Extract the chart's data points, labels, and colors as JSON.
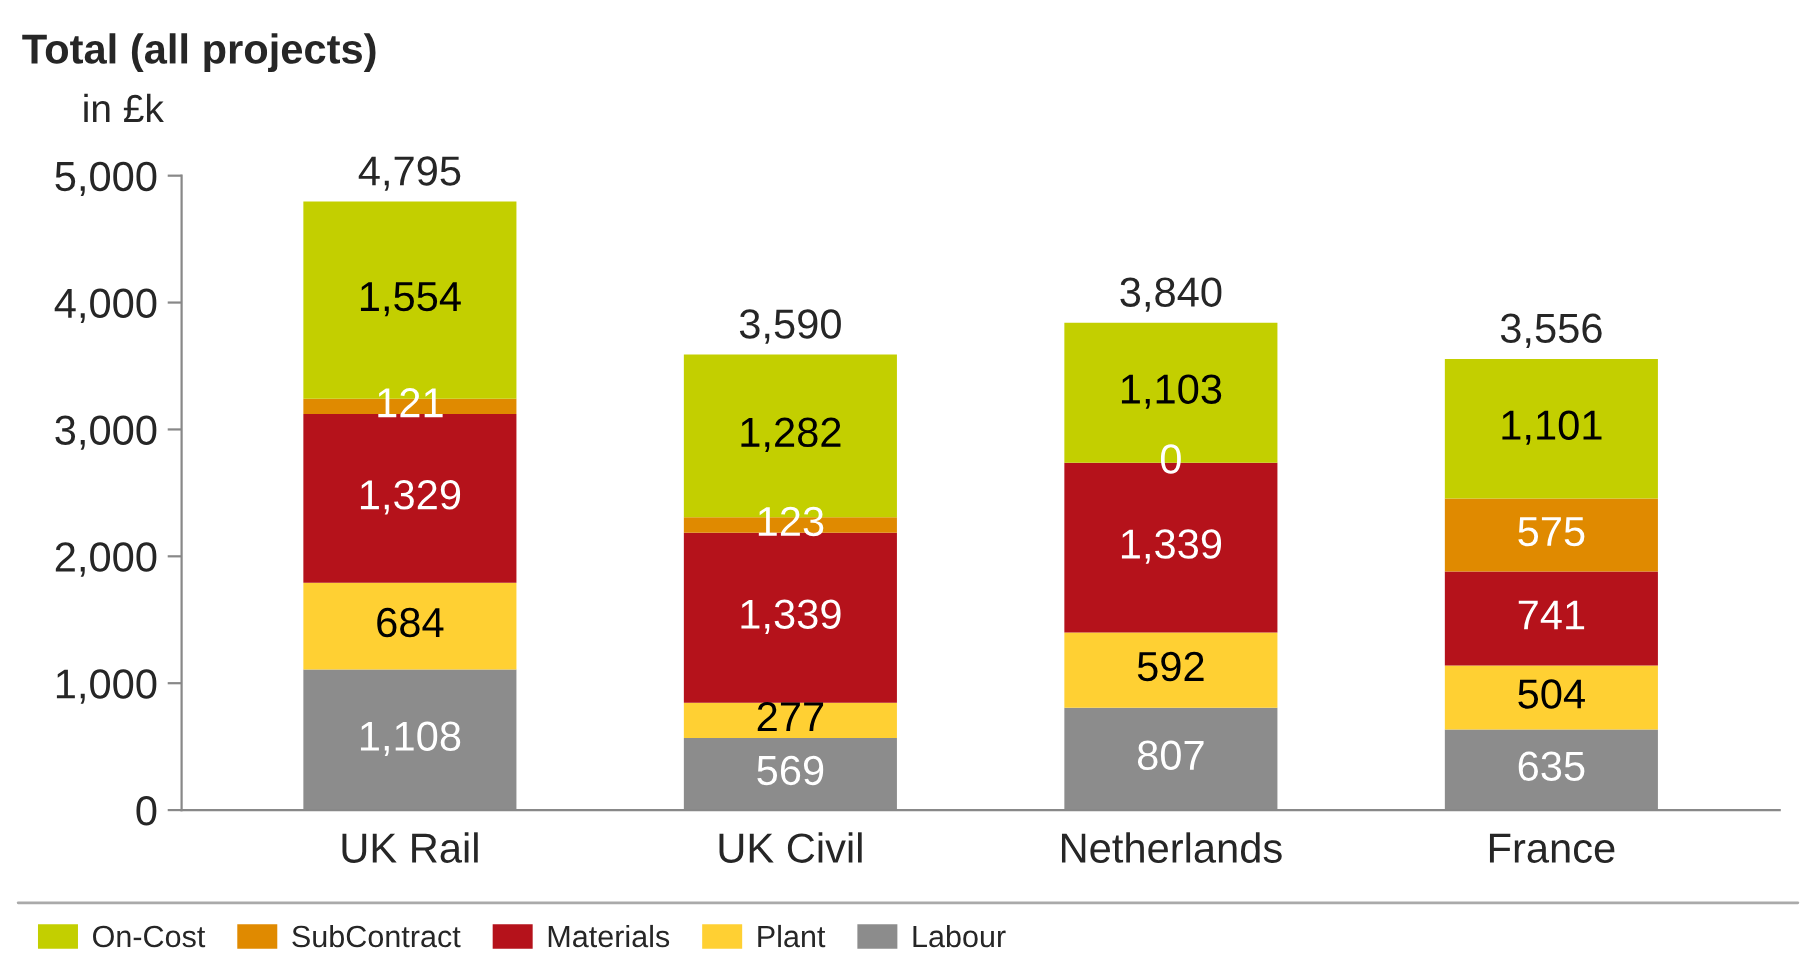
{
  "chart_data": {
    "type": "bar",
    "stacked": true,
    "title": "Total (all projects)",
    "subtitle": "in £k",
    "categories": [
      "UK Rail",
      "UK Civil",
      "Netherlands",
      "France"
    ],
    "series": [
      {
        "name": "Labour",
        "color": "#8c8c8c",
        "values": [
          1108,
          569,
          807,
          635
        ],
        "value_labels": [
          "1,108",
          "569",
          "807",
          "635"
        ]
      },
      {
        "name": "Plant",
        "color": "#ffd033",
        "values": [
          684,
          277,
          592,
          504
        ],
        "value_labels": [
          "684",
          "277",
          "592",
          "504"
        ]
      },
      {
        "name": "Materials",
        "color": "#b5121b",
        "values": [
          1329,
          1339,
          1339,
          741
        ],
        "value_labels": [
          "1,329",
          "1,339",
          "1,339",
          "741"
        ]
      },
      {
        "name": "SubContract",
        "color": "#e08a00",
        "values": [
          121,
          123,
          0,
          575
        ],
        "value_labels": [
          "121",
          "123",
          "0",
          "575"
        ]
      },
      {
        "name": "On-Cost",
        "color": "#c3cf00",
        "values": [
          1554,
          1282,
          1103,
          1101
        ],
        "value_labels": [
          "1,554",
          "1,282",
          "1,103",
          "1,101"
        ]
      }
    ],
    "totals": [
      "4,795",
      "3,590",
      "3,840",
      "3,556"
    ],
    "ylim": [
      0,
      5000
    ],
    "yticks": [
      0,
      {
        "value": 1000,
        "label": "1,000"
      },
      {
        "value": 2000,
        "label": "2,000"
      },
      {
        "value": 3000,
        "label": "3,000"
      },
      {
        "value": 4000,
        "label": "4,000"
      },
      {
        "value": 5000,
        "label": "5,000"
      }
    ],
    "grid": false,
    "legend": "bottom"
  }
}
